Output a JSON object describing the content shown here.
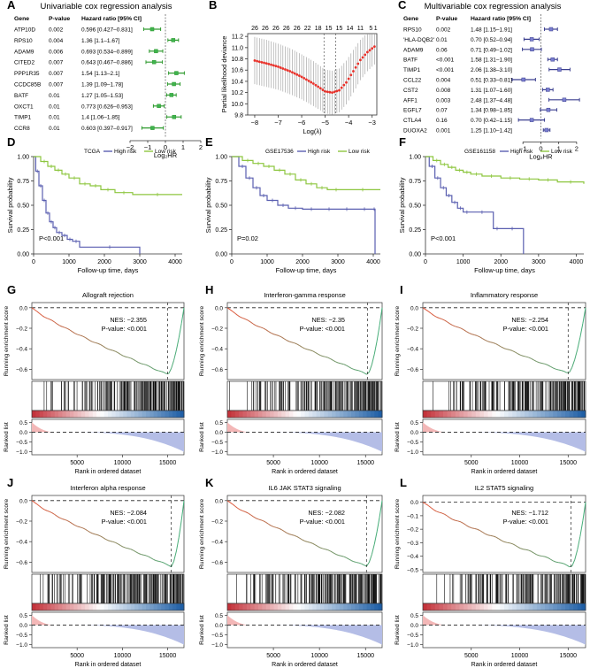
{
  "chart_data": [
    {
      "id": "A",
      "type": "forest",
      "letter": "A",
      "title": "Univariable cox regression analysis",
      "headers": {
        "gene": "Gene",
        "p": "P-value",
        "hr": "Hazard ratio [95% CI]"
      },
      "rows": [
        {
          "gene": "ATP10D",
          "p": "0.002",
          "hr_text": "0.596 [0.427–0.831]",
          "value": -0.75,
          "lo": -1.23,
          "hi": -0.27
        },
        {
          "gene": "RPS10",
          "p": "0.004",
          "hr_text": "1.36 [1.1–1.67]",
          "value": 0.44,
          "lo": 0.14,
          "hi": 0.74
        },
        {
          "gene": "ADAM9",
          "p": "0.006",
          "hr_text": "0.693 [0.534–0.899]",
          "value": -0.53,
          "lo": -0.91,
          "hi": -0.15
        },
        {
          "gene": "CITED2",
          "p": "0.007",
          "hr_text": "0.643 [0.467–0.886]",
          "value": -0.64,
          "lo": -1.1,
          "hi": -0.17
        },
        {
          "gene": "PPP1R35",
          "p": "0.007",
          "hr_text": "1.54 [1.13–2.1]",
          "value": 0.62,
          "lo": 0.18,
          "hi": 1.07
        },
        {
          "gene": "CCDC85B",
          "p": "0.007",
          "hr_text": "1.39 [1.09–1.78]",
          "value": 0.48,
          "lo": 0.12,
          "hi": 0.83
        },
        {
          "gene": "BATF",
          "p": "0.01",
          "hr_text": "1.27 [1.05–1.53]",
          "value": 0.34,
          "lo": 0.07,
          "hi": 0.61
        },
        {
          "gene": "OXCT1",
          "p": "0.01",
          "hr_text": "0.773 [0.626–0.953]",
          "value": -0.37,
          "lo": -0.68,
          "hi": -0.07
        },
        {
          "gene": "TIMP1",
          "p": "0.01",
          "hr_text": "1.4 [1.06–1.85]",
          "value": 0.49,
          "lo": 0.08,
          "hi": 0.89
        },
        {
          "gene": "CCR8",
          "p": "0.01",
          "hr_text": "0.603 [0.397–0.917]",
          "value": -0.73,
          "lo": -1.33,
          "hi": -0.12
        }
      ],
      "xlim": [
        -2,
        2
      ],
      "ticks": [
        -2,
        -1,
        0,
        1,
        2
      ],
      "tick_labels": [
        "−2",
        "−1",
        "0",
        "1",
        "2"
      ],
      "xlabel": "Log₂HR",
      "colors": {
        "bar": "#2e9a2e",
        "dot": "#3fb34f"
      }
    },
    {
      "id": "B",
      "type": "cv_curve",
      "letter": "B",
      "xlabel": "Log(λ)",
      "ylabel": "Partial likelihood deviance",
      "xlim": [
        -8.3,
        -2.8
      ],
      "ylim": [
        9.8,
        11.25
      ],
      "xticks": [
        -8,
        -7,
        -6,
        -5,
        -4,
        -3
      ],
      "xtick_labels": [
        "−8",
        "−7",
        "−6",
        "−5",
        "−4",
        "−3"
      ],
      "yticks": [
        9.8,
        10.0,
        10.2,
        10.4,
        10.6,
        10.8,
        11.0,
        11.2
      ],
      "ytick_labels": [
        "9.8",
        "10.0",
        "10.2",
        "10.4",
        "10.6",
        "10.8",
        "11.0",
        "11.2"
      ],
      "top_labels": [
        "26",
        "26",
        "26",
        "26",
        "26",
        "22",
        "18",
        "15",
        "15",
        "14",
        "11",
        "5",
        "1"
      ],
      "top_positions": [
        -8.0,
        -7.55,
        -7.1,
        -6.65,
        -6.2,
        -5.75,
        -5.3,
        -4.85,
        -4.4,
        -3.95,
        -3.5,
        -3.05,
        -2.85
      ],
      "curve": {
        "x": [
          -8.0,
          -7.5,
          -7.0,
          -6.5,
          -6.0,
          -5.5,
          -5.0,
          -4.7,
          -4.4,
          -4.1,
          -3.8,
          -3.5,
          -3.2,
          -2.9
        ],
        "y": [
          10.77,
          10.72,
          10.66,
          10.58,
          10.48,
          10.36,
          10.22,
          10.2,
          10.24,
          10.38,
          10.58,
          10.78,
          10.92,
          11.02
        ],
        "err": [
          0.42,
          0.42,
          0.41,
          0.41,
          0.4,
          0.4,
          0.39,
          0.39,
          0.39,
          0.39,
          0.38,
          0.36,
          0.34,
          0.32
        ]
      },
      "vlines": [
        -5.05,
        -4.55
      ],
      "colors": {
        "point": "#e8322b",
        "error": "#9a9a9a"
      }
    },
    {
      "id": "C",
      "type": "forest",
      "letter": "C",
      "title": "Multivariable cox regression analysis",
      "headers": {
        "gene": "Gene",
        "p": "P-value",
        "hr": "Hazard ratio [95% CI]"
      },
      "rows": [
        {
          "gene": "RPS10",
          "p": "0.002",
          "hr_text": "1.48 [1.15–1.91]",
          "value": 0.57,
          "lo": 0.2,
          "hi": 0.93
        },
        {
          "gene": "'HLA-DQB2'",
          "p": "0.01",
          "hr_text": "0.70 [0.52–0.94]",
          "value": -0.51,
          "lo": -0.94,
          "hi": -0.09
        },
        {
          "gene": "ADAM9",
          "p": "0.06",
          "hr_text": "0.71 [0.49–1.02]",
          "value": -0.49,
          "lo": -1.03,
          "hi": 0.03
        },
        {
          "gene": "BATF",
          "p": "<0.001",
          "hr_text": "1.58 [1.31–1.90]",
          "value": 0.66,
          "lo": 0.39,
          "hi": 0.93
        },
        {
          "gene": "TIMP1",
          "p": "<0.001",
          "hr_text": "2.06 [1.38–3.10]",
          "value": 1.04,
          "lo": 0.46,
          "hi": 1.63
        },
        {
          "gene": "CCL22",
          "p": "0.004",
          "hr_text": "0.51 [0.33–0.81]",
          "value": -0.97,
          "lo": -1.6,
          "hi": -0.3
        },
        {
          "gene": "CST2",
          "p": "0.008",
          "hr_text": "1.31 [1.07–1.60]",
          "value": 0.39,
          "lo": 0.1,
          "hi": 0.68
        },
        {
          "gene": "AFF1",
          "p": "0.003",
          "hr_text": "2.48 [1.37–4.48]",
          "value": 1.31,
          "lo": 0.45,
          "hi": 2.16
        },
        {
          "gene": "EGFL7",
          "p": "0.07",
          "hr_text": "1.34 [0.98–1.85]",
          "value": 0.42,
          "lo": -0.03,
          "hi": 0.89
        },
        {
          "gene": "CTLA4",
          "p": "0.16",
          "hr_text": "0.70 [0.42–1.15]",
          "value": -0.51,
          "lo": -1.25,
          "hi": 0.2
        },
        {
          "gene": "DUOXA2",
          "p": "0.001",
          "hr_text": "1.25 [1.10–1.42]",
          "value": 0.32,
          "lo": 0.14,
          "hi": 0.51
        }
      ],
      "xlim": [
        -1.8,
        2.5
      ],
      "ticks": [
        -1,
        0,
        1,
        2
      ],
      "tick_labels": [
        "−1",
        "0",
        "1",
        "2"
      ],
      "xlabel": "Log₂HR",
      "colors": {
        "bar": "#3b3f8f",
        "dot": "#7b7fd0"
      }
    },
    {
      "id": "D",
      "type": "km",
      "letter": "D",
      "dataset": "TCGA",
      "legend": [
        "High risk",
        "Low risk"
      ],
      "pvalue": "P<0.001",
      "xlabel": "Follow-up time, days",
      "ylabel": "Survival probability",
      "xlim": [
        0,
        4200
      ],
      "ylim": [
        0,
        1
      ],
      "xticks": [
        0,
        1000,
        2000,
        3000,
        4000
      ],
      "yticks": [
        0,
        0.25,
        0.5,
        0.75,
        1.0
      ],
      "ytick_labels": [
        "0.00",
        "0.25",
        "0.50",
        "0.75",
        "1.00"
      ],
      "series": [
        {
          "name": "High risk",
          "color": "#5a5fb0",
          "x": [
            0,
            60,
            150,
            250,
            350,
            450,
            550,
            650,
            800,
            950,
            1100,
            1300,
            3000
          ],
          "y": [
            1.0,
            0.85,
            0.7,
            0.55,
            0.42,
            0.33,
            0.27,
            0.22,
            0.19,
            0.15,
            0.13,
            0.07,
            0.0
          ]
        },
        {
          "name": "Low risk",
          "color": "#8dc63f",
          "x": [
            0,
            200,
            400,
            600,
            800,
            1000,
            1300,
            1600,
            1900,
            2300,
            2800,
            4200
          ],
          "y": [
            1.0,
            0.95,
            0.9,
            0.86,
            0.82,
            0.78,
            0.72,
            0.7,
            0.66,
            0.63,
            0.61,
            0.61
          ]
        }
      ]
    },
    {
      "id": "E",
      "type": "km",
      "letter": "E",
      "dataset": "GSE17536",
      "legend": [
        "High risk",
        "Low risk"
      ],
      "pvalue": "P=0.02",
      "xlabel": "Follow-up time, days",
      "ylabel": "Survival probability",
      "xlim": [
        0,
        4200
      ],
      "ylim": [
        0,
        1
      ],
      "xticks": [
        0,
        1000,
        2000,
        3000,
        4000
      ],
      "yticks": [
        0,
        0.25,
        0.5,
        0.75,
        1.0
      ],
      "ytick_labels": [
        "0.00",
        "0.25",
        "0.50",
        "0.75",
        "1.00"
      ],
      "series": [
        {
          "name": "High risk",
          "color": "#5a5fb0",
          "x": [
            0,
            200,
            400,
            600,
            800,
            1000,
            1300,
            1600,
            2000,
            2500,
            3000,
            3500,
            4000,
            4050
          ],
          "y": [
            1.0,
            0.9,
            0.78,
            0.68,
            0.6,
            0.55,
            0.5,
            0.47,
            0.46,
            0.46,
            0.46,
            0.46,
            0.46,
            0.0
          ]
        },
        {
          "name": "Low risk",
          "color": "#8dc63f",
          "x": [
            0,
            300,
            600,
            900,
            1200,
            1500,
            1800,
            2100,
            2400,
            2700,
            3200,
            4200
          ],
          "y": [
            1.0,
            0.96,
            0.93,
            0.9,
            0.86,
            0.82,
            0.76,
            0.72,
            0.68,
            0.66,
            0.66,
            0.66
          ]
        }
      ]
    },
    {
      "id": "F",
      "type": "km",
      "letter": "F",
      "dataset": "GSE161158",
      "legend": [
        "High risk",
        "Low risk"
      ],
      "pvalue": "P<0.001",
      "xlabel": "Follow-up time, days",
      "ylabel": "Survival probability",
      "xlim": [
        0,
        4200
      ],
      "ylim": [
        0,
        1
      ],
      "xticks": [
        0,
        1000,
        2000,
        3000,
        4000
      ],
      "yticks": [
        0,
        0.25,
        0.5,
        0.75,
        1.0
      ],
      "ytick_labels": [
        "0.00",
        "0.25",
        "0.50",
        "0.75",
        "1.00"
      ],
      "series": [
        {
          "name": "High risk",
          "color": "#5a5fb0",
          "x": [
            0,
            100,
            250,
            400,
            550,
            700,
            850,
            1000,
            1200,
            1800,
            2000,
            2600
          ],
          "y": [
            1.0,
            0.9,
            0.78,
            0.68,
            0.6,
            0.53,
            0.47,
            0.43,
            0.43,
            0.26,
            0.26,
            0.0
          ]
        },
        {
          "name": "Low risk",
          "color": "#8dc63f",
          "x": [
            0,
            200,
            400,
            600,
            800,
            1000,
            1200,
            1500,
            2000,
            2500,
            3000,
            3500,
            4200
          ],
          "y": [
            1.0,
            0.96,
            0.92,
            0.89,
            0.86,
            0.84,
            0.82,
            0.8,
            0.78,
            0.77,
            0.76,
            0.74,
            0.72
          ]
        }
      ]
    },
    {
      "id": "G",
      "type": "gsea",
      "letter": "G",
      "title": "Allograft rejection",
      "nes": "NES: −2.355",
      "pval": "P-value: <0.001",
      "min_es": -0.65,
      "min_rank": 15000,
      "ylim": [
        -0.7,
        0.05
      ],
      "yticks": [
        0,
        -0.2,
        -0.4,
        -0.6
      ],
      "ytick_labels": [
        "0.0",
        "−0.2",
        "−0.4",
        "−0.6"
      ]
    },
    {
      "id": "H",
      "type": "gsea",
      "letter": "H",
      "title": "Interferon-gamma response",
      "nes": "NES: −2.35",
      "pval": "P-value: <0.001",
      "min_es": -0.65,
      "min_rank": 15200,
      "ylim": [
        -0.7,
        0.05
      ],
      "yticks": [
        0,
        -0.2,
        -0.4,
        -0.6
      ],
      "ytick_labels": [
        "0.0",
        "−0.2",
        "−0.4",
        "−0.6"
      ]
    },
    {
      "id": "I",
      "type": "gsea",
      "letter": "I",
      "title": "Inflammatory response",
      "nes": "NES: −2.254",
      "pval": "P-value: <0.001",
      "min_es": -0.64,
      "min_rank": 15000,
      "ylim": [
        -0.7,
        0.05
      ],
      "yticks": [
        0,
        -0.2,
        -0.4,
        -0.6
      ],
      "ytick_labels": [
        "0.0",
        "−0.2",
        "−0.4",
        "−0.6"
      ]
    },
    {
      "id": "J",
      "type": "gsea",
      "letter": "J",
      "title": "Interferon alpha response",
      "nes": "NES: −2.084",
      "pval": "P-value: <0.001",
      "min_es": -0.64,
      "min_rank": 15400,
      "ylim": [
        -0.7,
        0.05
      ],
      "yticks": [
        0,
        -0.2,
        -0.4,
        -0.6
      ],
      "ytick_labels": [
        "0.0",
        "−0.2",
        "−0.4",
        "−0.6"
      ]
    },
    {
      "id": "K",
      "type": "gsea",
      "letter": "K",
      "title": "IL6 JAK STAT3 signaling",
      "nes": "NES: −2.082",
      "pval": "P-value: <0.001",
      "min_es": -0.64,
      "min_rank": 15100,
      "ylim": [
        -0.7,
        0.05
      ],
      "yticks": [
        0,
        -0.2,
        -0.4,
        -0.6
      ],
      "ytick_labels": [
        "0.0",
        "−0.2",
        "−0.4",
        "−0.6"
      ]
    },
    {
      "id": "L",
      "type": "gsea",
      "letter": "L",
      "title": "IL2 STAT5 signaling",
      "nes": "NES: −1.712",
      "pval": "P-value: <0.001",
      "min_es": -0.48,
      "min_rank": 15300,
      "ylim": [
        -0.52,
        0.05
      ],
      "yticks": [
        0,
        -0.1,
        -0.2,
        -0.3,
        -0.4,
        -0.5
      ],
      "ytick_labels": [
        "0.0",
        "−0.1",
        "−0.2",
        "−0.3",
        "−0.4",
        "−0.5"
      ]
    }
  ],
  "gsea_common": {
    "ylabel": "Running enrichment score",
    "rank_label": "Ranked list",
    "xlabel": "Rank in ordered dataset",
    "xlim": [
      0,
      16800
    ],
    "xticks": [
      5000,
      10000,
      15000
    ],
    "rank_yticks": [
      0.5,
      0,
      -0.5,
      -1.0
    ],
    "rank_ytick_labels": [
      "0.5",
      "0.0",
      "−0.5",
      "−1.0"
    ],
    "colors": {
      "es_start": "#e4553a",
      "es_end": "#43b07a",
      "rank_pos": "#f3b7b7",
      "rank_neg": "#b4bde6",
      "bar_red": "#c4333b",
      "bar_blue": "#1f5fa6"
    }
  }
}
